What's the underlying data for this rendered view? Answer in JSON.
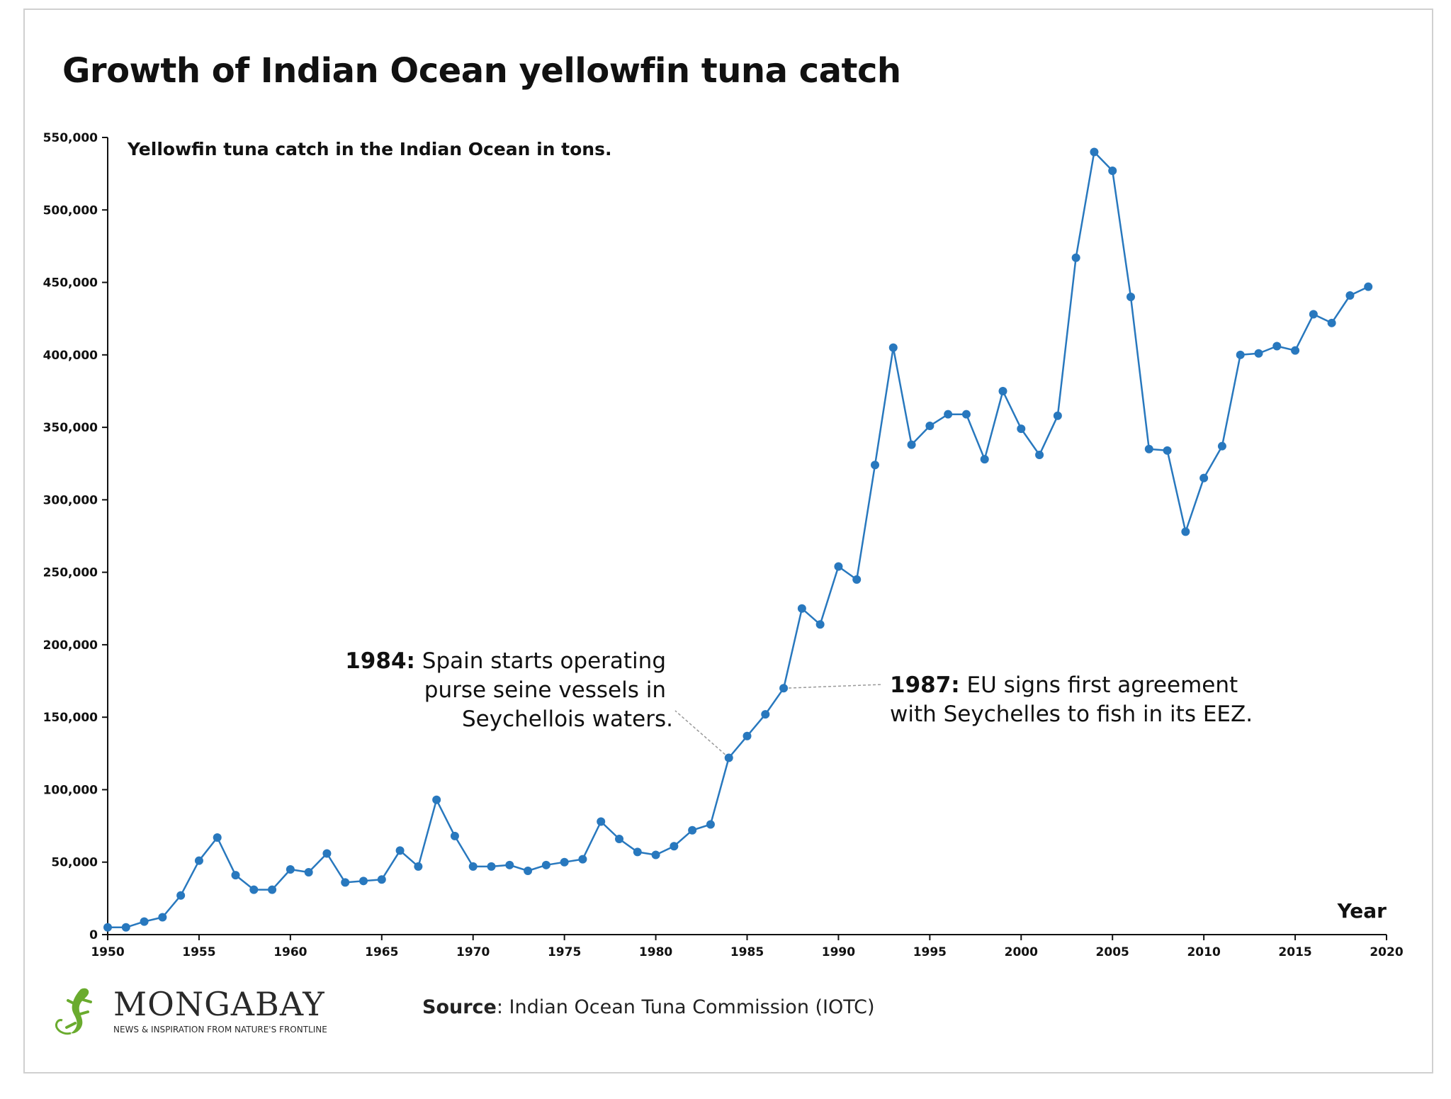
{
  "title": "Growth of Indian Ocean yellowfin tuna catch",
  "colors": {
    "line": "#2878be",
    "axis": "#111111",
    "leader": "#999999",
    "logo_green": "#6aab2e"
  },
  "source": {
    "label": "Source",
    "text": ": Indian Ocean Tuna Commission (IOTC)"
  },
  "logo": {
    "name": "MONGABAY",
    "tagline": "NEWS & INSPIRATION FROM NATURE'S FRONTLINE",
    "icon": "gecko-icon"
  },
  "chart_data": {
    "type": "line",
    "subtitle": "Yellowfin tuna catch in the Indian Ocean in tons.",
    "xlabel": "Year",
    "ylabel": "",
    "xlim": [
      1950,
      2020
    ],
    "ylim": [
      0,
      550000
    ],
    "x_ticks": [
      "1950",
      "1955",
      "1960",
      "1965",
      "1970",
      "1975",
      "1980",
      "1985",
      "1990",
      "1995",
      "2000",
      "2005",
      "2010",
      "2015",
      "2020"
    ],
    "y_ticks": [
      "0",
      "50,000",
      "100,000",
      "150,000",
      "200,000",
      "250,000",
      "300,000",
      "350,000",
      "400,000",
      "450,000",
      "500,000",
      "550,000"
    ],
    "grid": false,
    "series": [
      {
        "x": [
          1950,
          1951,
          1952,
          1953,
          1954,
          1955,
          1956,
          1957,
          1958,
          1959,
          1960,
          1961,
          1962,
          1963,
          1964,
          1965,
          1966,
          1967,
          1968,
          1969,
          1970,
          1971,
          1972,
          1973,
          1974,
          1975,
          1976,
          1977,
          1978,
          1979,
          1980,
          1981,
          1982,
          1983,
          1984,
          1985,
          1986,
          1987,
          1988,
          1989,
          1990,
          1991,
          1992,
          1993,
          1994,
          1995,
          1996,
          1997,
          1998,
          1999,
          2000,
          2001,
          2002,
          2003,
          2004,
          2005,
          2006,
          2007,
          2008,
          2009,
          2010,
          2011,
          2012,
          2013,
          2014,
          2015,
          2016,
          2017,
          2018,
          2019
        ],
        "values": [
          5000,
          5000,
          9000,
          12000,
          27000,
          51000,
          67000,
          41000,
          31000,
          31000,
          45000,
          43000,
          56000,
          36000,
          37000,
          38000,
          58000,
          47000,
          93000,
          68000,
          47000,
          47000,
          48000,
          44000,
          48000,
          50000,
          52000,
          78000,
          66000,
          57000,
          55000,
          61000,
          72000,
          76000,
          122000,
          137000,
          152000,
          170000,
          225000,
          214000,
          254000,
          245000,
          324000,
          405000,
          338000,
          351000,
          359000,
          359000,
          328000,
          375000,
          349000,
          331000,
          358000,
          467000,
          540000,
          527000,
          440000,
          335000,
          334000,
          278000,
          315000,
          337000,
          400000,
          401000,
          406000,
          403000,
          428000,
          422000,
          441000,
          447000
        ]
      }
    ],
    "annotations": [
      {
        "bold": "1984:",
        "lines": [
          " Spain starts operating",
          "purse seine vessels in",
          "Seychellois waters."
        ],
        "x": 1984,
        "y": 122000
      },
      {
        "bold": "1987:",
        "lines": [
          " EU signs first agreement",
          "with Seychelles to fish in its EEZ."
        ],
        "x": 1987,
        "y": 170000
      }
    ]
  }
}
